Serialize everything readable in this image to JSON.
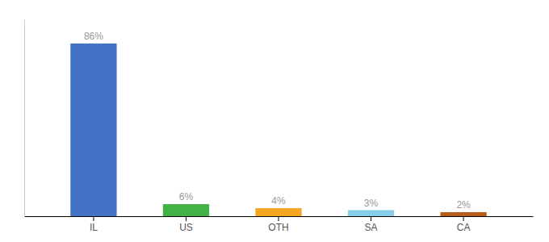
{
  "chart_data": {
    "type": "bar",
    "categories": [
      "IL",
      "US",
      "OTH",
      "SA",
      "CA"
    ],
    "values": [
      86,
      6,
      4,
      3,
      2
    ],
    "colors": [
      "#4472c4",
      "#43b244",
      "#f5a623",
      "#87ceeb",
      "#b85c1a"
    ],
    "ylim": [
      0,
      98
    ],
    "data_labels": true,
    "value_labels": [
      "86%",
      "6%",
      "4%",
      "3%",
      "2%"
    ],
    "tick_labels": "x",
    "grid": false
  }
}
